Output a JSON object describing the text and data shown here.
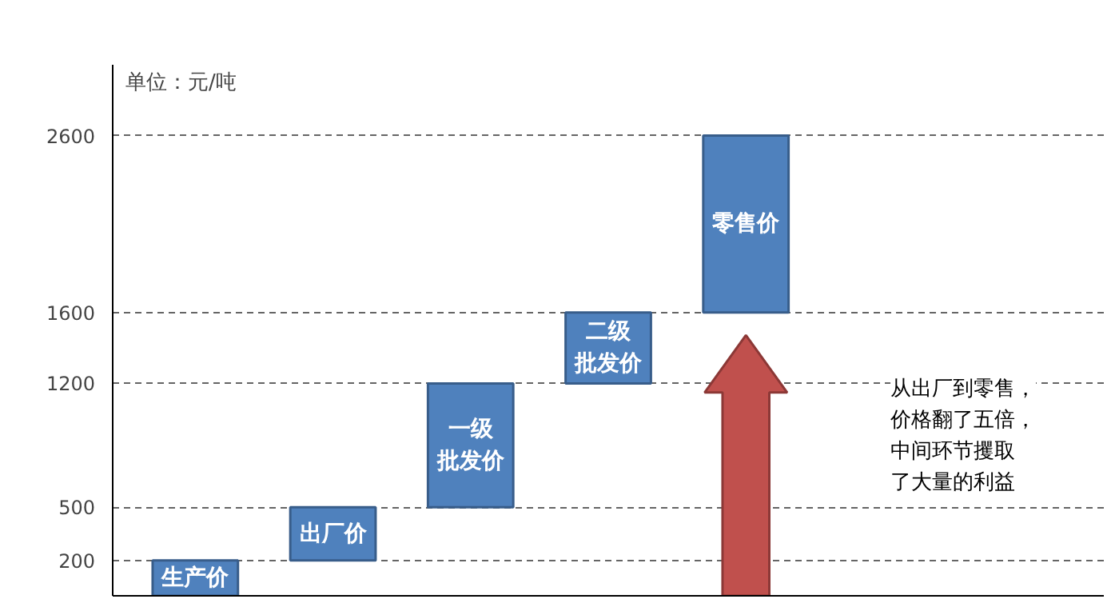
{
  "chart_data": {
    "type": "bar",
    "ylabel": "单位：元/吨",
    "categories": [
      "生产价",
      "出厂价",
      "一级批发价",
      "二级批发价",
      "零售价"
    ],
    "values": [
      200,
      300,
      700,
      400,
      1000
    ],
    "base": [
      0,
      200,
      500,
      1200,
      1600
    ],
    "color": "#4f81bd",
    "ylim": [
      0,
      3000
    ],
    "yticks": [
      200,
      500,
      1200,
      1600,
      2600
    ],
    "grid": "y",
    "tick_labels": "y",
    "annotations": [
      "从出厂到零售，价格翻了五倍，中间环节攫取了大量的利益"
    ]
  }
}
